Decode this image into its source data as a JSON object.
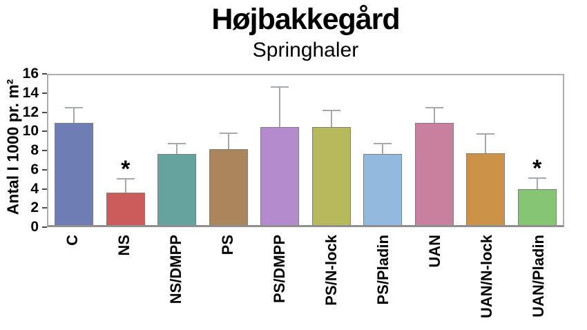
{
  "title": "Højbakkegård",
  "subtitle": "Springhaler",
  "chart_data": {
    "type": "bar",
    "title": "Højbakkegård",
    "subtitle": "Springhaler",
    "xlabel": "",
    "ylabel": "Antal I 1000 pr. m²",
    "ylim": [
      0,
      16
    ],
    "yticks": [
      0,
      2,
      4,
      6,
      8,
      10,
      12,
      14,
      16
    ],
    "grid": false,
    "legend": null,
    "categories": [
      "C",
      "NS",
      "NS/DMPP",
      "PS",
      "PS/DMPP",
      "PS/N-lock",
      "PS/Pladin",
      "UAN",
      "UAN/N-lock",
      "UAN/Pladin"
    ],
    "values": [
      10.9,
      3.5,
      7.6,
      8.1,
      10.5,
      10.5,
      7.6,
      10.9,
      7.7,
      3.8
    ],
    "error_upper": [
      1.7,
      1.5,
      1.2,
      1.8,
      4.3,
      1.8,
      1.2,
      1.7,
      2.1,
      1.3
    ],
    "significance_marker": "*",
    "significant": [
      false,
      true,
      false,
      false,
      false,
      false,
      false,
      false,
      false,
      true
    ],
    "bar_colors": [
      "#6e7eb4",
      "#cc5b5b",
      "#66a39e",
      "#ab855c",
      "#b48bcc",
      "#b8b85c",
      "#92bade",
      "#c97f9e",
      "#cc9348",
      "#85c573"
    ],
    "error_bar_color": "#a4a9b0",
    "frame_color": "#adadad",
    "text_color": "#000000"
  }
}
